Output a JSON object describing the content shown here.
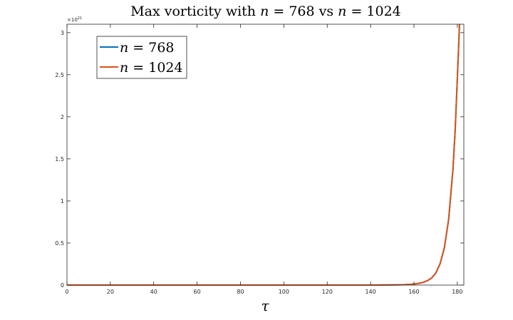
{
  "chart_data": {
    "type": "line",
    "title": {
      "prefix": "Max vorticity with ",
      "var1": "n",
      "eq1": " = 768 vs ",
      "var2": "n",
      "eq2": " = 1024"
    },
    "xlabel": "τ",
    "ylabel": "",
    "y_exponent": {
      "base": "×10",
      "power": "21"
    },
    "xlim": [
      0,
      183
    ],
    "ylim": [
      0,
      3.1
    ],
    "xticks": [
      0,
      20,
      40,
      60,
      80,
      100,
      120,
      140,
      160,
      180
    ],
    "yticks": [
      0,
      0.5,
      1,
      1.5,
      2,
      2.5,
      3
    ],
    "ytick_labels": [
      "0",
      "0.5",
      "1",
      "1.5",
      "2",
      "2.5",
      "3"
    ],
    "grid": false,
    "legend_position": "top-left",
    "series": [
      {
        "name": "n = 768",
        "legend_var": "n",
        "legend_eq": " = 768",
        "color": "#0072BD",
        "x": [
          0,
          20,
          40,
          60,
          80,
          100,
          120,
          140,
          150,
          155,
          158,
          160,
          162,
          164,
          166,
          168,
          170,
          172,
          174,
          176,
          178,
          179,
          180,
          181
        ],
        "y": [
          0,
          0,
          0,
          0,
          0,
          0,
          0,
          0,
          0.002,
          0.004,
          0.008,
          0.013,
          0.02,
          0.03,
          0.05,
          0.08,
          0.14,
          0.25,
          0.44,
          0.78,
          1.38,
          1.84,
          2.45,
          3.1
        ]
      },
      {
        "name": "n = 1024",
        "legend_var": "n",
        "legend_eq": " = 1024",
        "color": "#D95319",
        "x": [
          0,
          20,
          40,
          60,
          80,
          100,
          120,
          140,
          150,
          155,
          158,
          160,
          162,
          164,
          166,
          168,
          170,
          172,
          174,
          176,
          178,
          179,
          180,
          181
        ],
        "y": [
          0,
          0,
          0,
          0,
          0,
          0,
          0,
          0,
          0.002,
          0.004,
          0.008,
          0.013,
          0.02,
          0.03,
          0.05,
          0.08,
          0.14,
          0.25,
          0.44,
          0.78,
          1.38,
          1.84,
          2.45,
          3.1
        ]
      }
    ]
  }
}
